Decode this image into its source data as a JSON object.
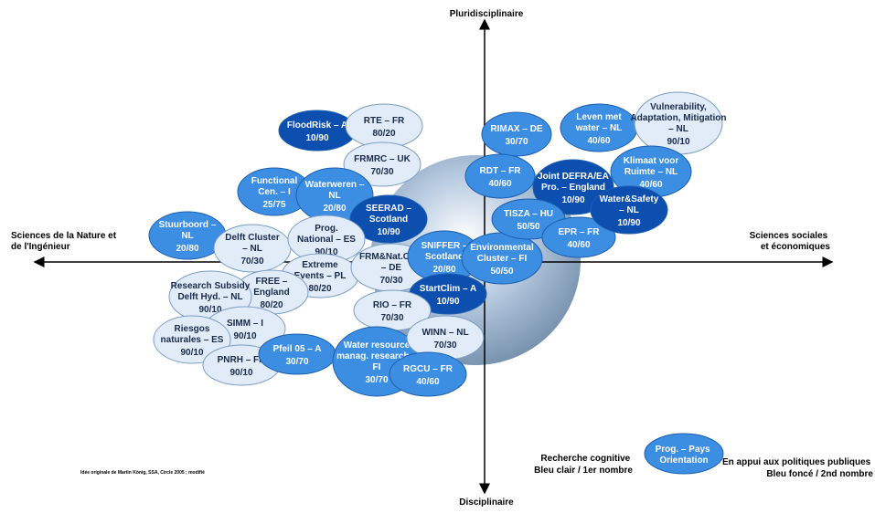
{
  "axes": {
    "top": "Pluridisciplinaire",
    "bottom": "Disciplinaire",
    "left": [
      "Sciences de la Nature et",
      "de l'Ingénieur"
    ],
    "right": [
      "Sciences sociales",
      "et économiques"
    ]
  },
  "nodes": [
    {
      "lines": [
        "FloodRisk – A"
      ],
      "ratio": "10/90",
      "color": "#0d4fae"
    },
    {
      "lines": [
        "RTE – FR"
      ],
      "ratio": "80/20",
      "color": "#e1ecf8"
    },
    {
      "lines": [
        "FRMRC – UK"
      ],
      "ratio": "70/30",
      "color": "#e1ecf8"
    },
    {
      "lines": [
        "Functional",
        "Cen. – I"
      ],
      "ratio": "25/75",
      "color": "#3c8ee2"
    },
    {
      "lines": [
        "Waterweren –",
        "NL"
      ],
      "ratio": "20/80",
      "color": "#3c8ee2"
    },
    {
      "lines": [
        "SEERAD –",
        "Scotland"
      ],
      "ratio": "10/90",
      "color": "#0d4fae"
    },
    {
      "lines": [
        "Stuurboord –",
        "NL"
      ],
      "ratio": "20/80",
      "color": "#3c8ee2"
    },
    {
      "lines": [
        "Delft Cluster",
        "– NL"
      ],
      "ratio": "70/30",
      "color": "#e1ecf8"
    },
    {
      "lines": [
        "Prog.",
        "National – ES"
      ],
      "ratio": "90/10",
      "color": "#e1ecf8"
    },
    {
      "lines": [
        "Extreme",
        "Events – PL"
      ],
      "ratio": "80/20",
      "color": "#e1ecf8"
    },
    {
      "lines": [
        "FREE –",
        "England"
      ],
      "ratio": "80/20",
      "color": "#e1ecf8"
    },
    {
      "lines": [
        "Research Subsidy",
        "Delft Hyd. – NL"
      ],
      "ratio": "90/10",
      "color": "#e1ecf8"
    },
    {
      "lines": [
        "FRM&Nat.Con.",
        "– DE"
      ],
      "ratio": "70/30",
      "color": "#e1ecf8"
    },
    {
      "lines": [
        "SNIFFER –",
        "Scotland"
      ],
      "ratio": "20/80",
      "color": "#3c8ee2"
    },
    {
      "lines": [
        "Environmental",
        "Cluster – FI"
      ],
      "ratio": "50/50",
      "color": "#3c8ee2"
    },
    {
      "lines": [
        "StartClim – A"
      ],
      "ratio": "10/90",
      "color": "#0d4fae"
    },
    {
      "lines": [
        "RIO – FR"
      ],
      "ratio": "70/30",
      "color": "#e1ecf8"
    },
    {
      "lines": [
        "SIMM – I"
      ],
      "ratio": "90/10",
      "color": "#e1ecf8"
    },
    {
      "lines": [
        "Riesgos",
        "naturales – ES"
      ],
      "ratio": "90/10",
      "color": "#e1ecf8"
    },
    {
      "lines": [
        "PNRH – FR"
      ],
      "ratio": "90/10",
      "color": "#e1ecf8"
    },
    {
      "lines": [
        "Pfeil 05 – A"
      ],
      "ratio": "30/70",
      "color": "#3c8ee2"
    },
    {
      "lines": [
        "Water resource",
        "manag. research –",
        "FI"
      ],
      "ratio": "30/70",
      "color": "#3c8ee2"
    },
    {
      "lines": [
        "WINN – NL"
      ],
      "ratio": "70/30",
      "color": "#e1ecf8"
    },
    {
      "lines": [
        "RGCU – FR"
      ],
      "ratio": "40/60",
      "color": "#3c8ee2"
    },
    {
      "lines": [
        "RIMAX – DE"
      ],
      "ratio": "30/70",
      "color": "#3c8ee2"
    },
    {
      "lines": [
        "Leven met",
        "water – NL"
      ],
      "ratio": "40/60",
      "color": "#3c8ee2"
    },
    {
      "lines": [
        "Vulnerability,",
        "Adaptation, Mitigation",
        "– NL"
      ],
      "ratio": "90/10",
      "color": "#e1ecf8"
    },
    {
      "lines": [
        "RDT – FR"
      ],
      "ratio": "40/60",
      "color": "#3c8ee2"
    },
    {
      "lines": [
        "Joint DEFRA/EA",
        "Pro. – England"
      ],
      "ratio": "10/90",
      "color": "#0d4fae"
    },
    {
      "lines": [
        "Klimaat voor",
        "Ruimte – NL"
      ],
      "ratio": "40/60",
      "color": "#3c8ee2"
    },
    {
      "lines": [
        "TISZA – HU"
      ],
      "ratio": "50/50",
      "color": "#3c8ee2"
    },
    {
      "lines": [
        "EPR – FR"
      ],
      "ratio": "40/60",
      "color": "#3c8ee2"
    },
    {
      "lines": [
        "Water&Safety",
        "– NL"
      ],
      "ratio": "10/90",
      "color": "#0d4fae"
    }
  ],
  "legend": {
    "left": [
      "Recherche cognitive",
      "Bleu clair / 1er nombre"
    ],
    "center": [
      "Prog. – Pays",
      "Orientation"
    ],
    "right": [
      "En appui aux politiques publiques",
      "Bleu foncé / 2nd nombre"
    ]
  },
  "credit": "Idée originale de Martin König, SSA, Circle 2005 ; modifié"
}
